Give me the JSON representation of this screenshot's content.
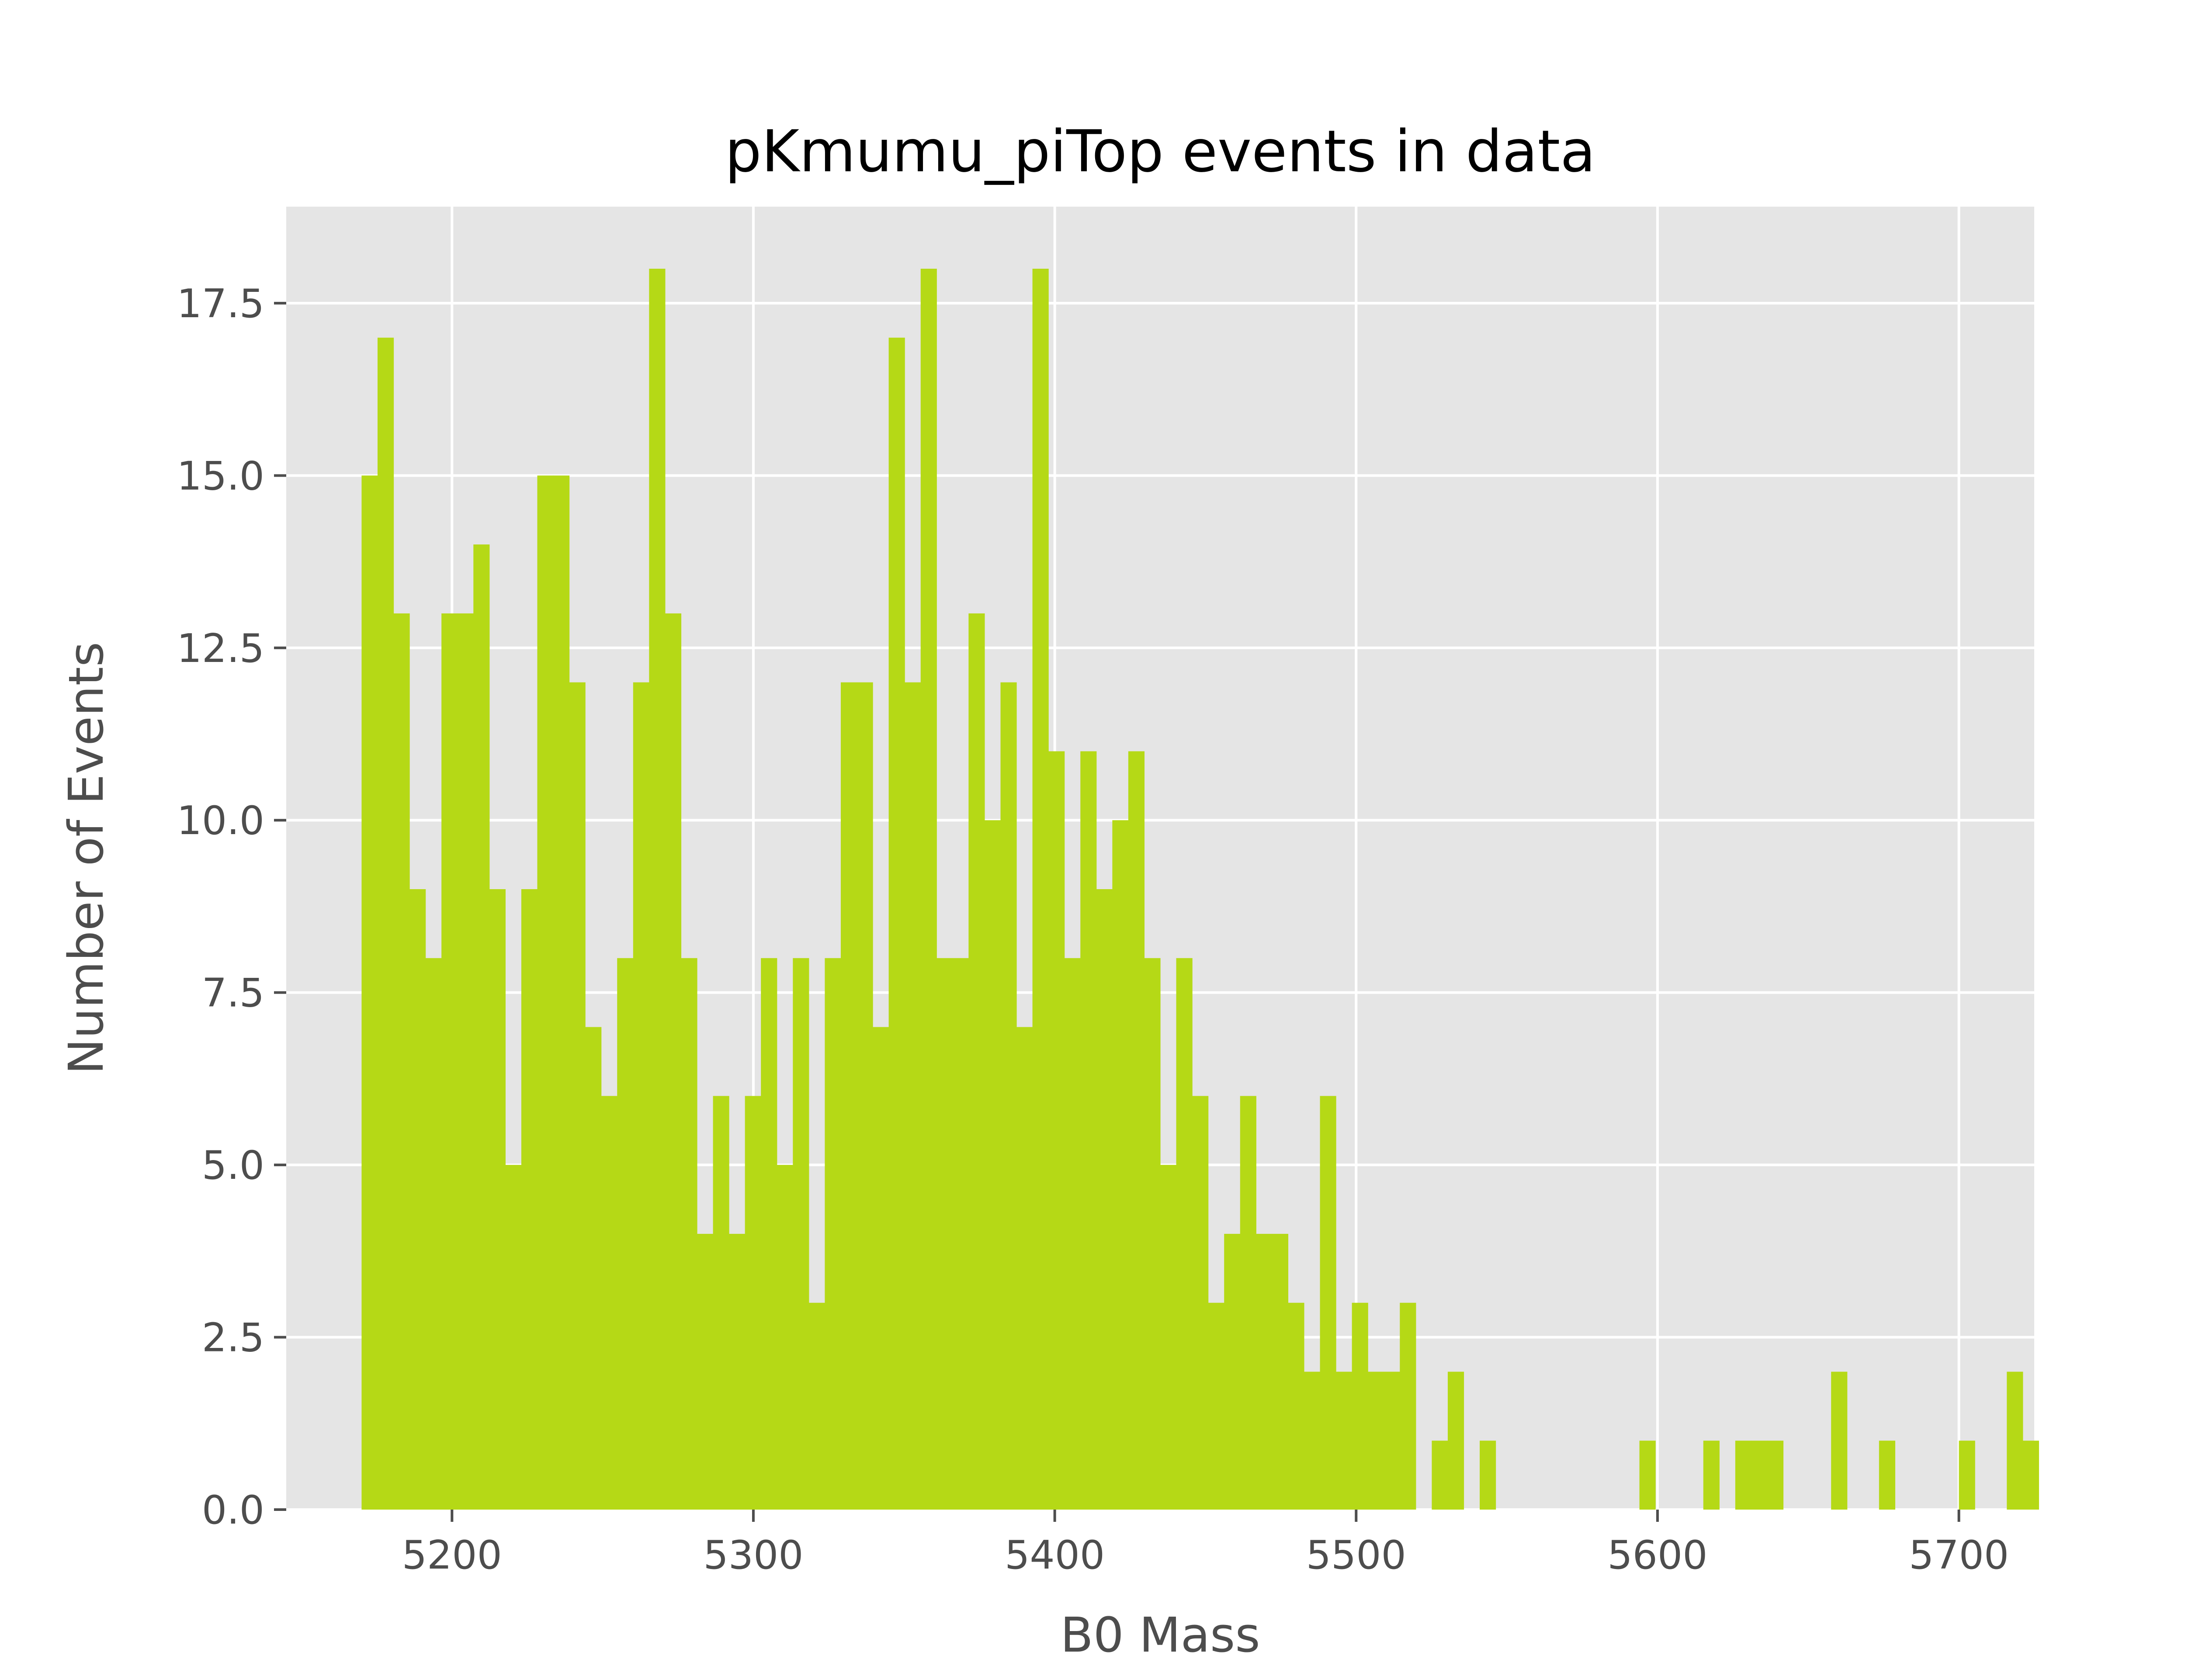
{
  "chart_data": {
    "type": "bar",
    "title": "pKmumu_piTop events in data",
    "xlabel": "B0 Mass",
    "ylabel": "Number of Events",
    "xlim": [
      5145,
      5725
    ],
    "ylim": [
      0,
      18.9
    ],
    "grid": true,
    "legend": "none",
    "xticks": [
      5200,
      5300,
      5400,
      5500,
      5600,
      5700
    ],
    "xtick_labels": [
      "5200",
      "5300",
      "5400",
      "5500",
      "5600",
      "5700"
    ],
    "yticks": [
      0,
      2.5,
      5,
      7.5,
      10,
      12.5,
      15,
      17.5
    ],
    "ytick_labels": [
      "0.0",
      "2.5",
      "5.0",
      "7.5",
      "10.0",
      "12.5",
      "15.0",
      "17.5"
    ],
    "bin_start": 5170,
    "bin_width": 5.3,
    "values": [
      15,
      17,
      13,
      9,
      8,
      13,
      13,
      14,
      9,
      5,
      9,
      15,
      15,
      12,
      7,
      6,
      8,
      12,
      18,
      13,
      8,
      4,
      6,
      4,
      6,
      8,
      5,
      8,
      3,
      8,
      12,
      12,
      7,
      17,
      12,
      18,
      8,
      8,
      13,
      10,
      12,
      7,
      18,
      11,
      8,
      11,
      9,
      10,
      11,
      8,
      5,
      8,
      6,
      3,
      4,
      6,
      4,
      4,
      3,
      2,
      6,
      2,
      3,
      2,
      2,
      3,
      0,
      1,
      2,
      0,
      1,
      0,
      0,
      0,
      0,
      0,
      0,
      0,
      0,
      0,
      1,
      0,
      0,
      0,
      1,
      0,
      1,
      1,
      1,
      0,
      0,
      0,
      2,
      0,
      0,
      1,
      0,
      0,
      0,
      0,
      1,
      0,
      0,
      2,
      1
    ],
    "colors": {
      "bar": "#b5d916",
      "plot_background": "#e5e5e5",
      "grid": "#ffffff",
      "tick": "#4d4d4d",
      "page_background": "#ffffff"
    }
  }
}
